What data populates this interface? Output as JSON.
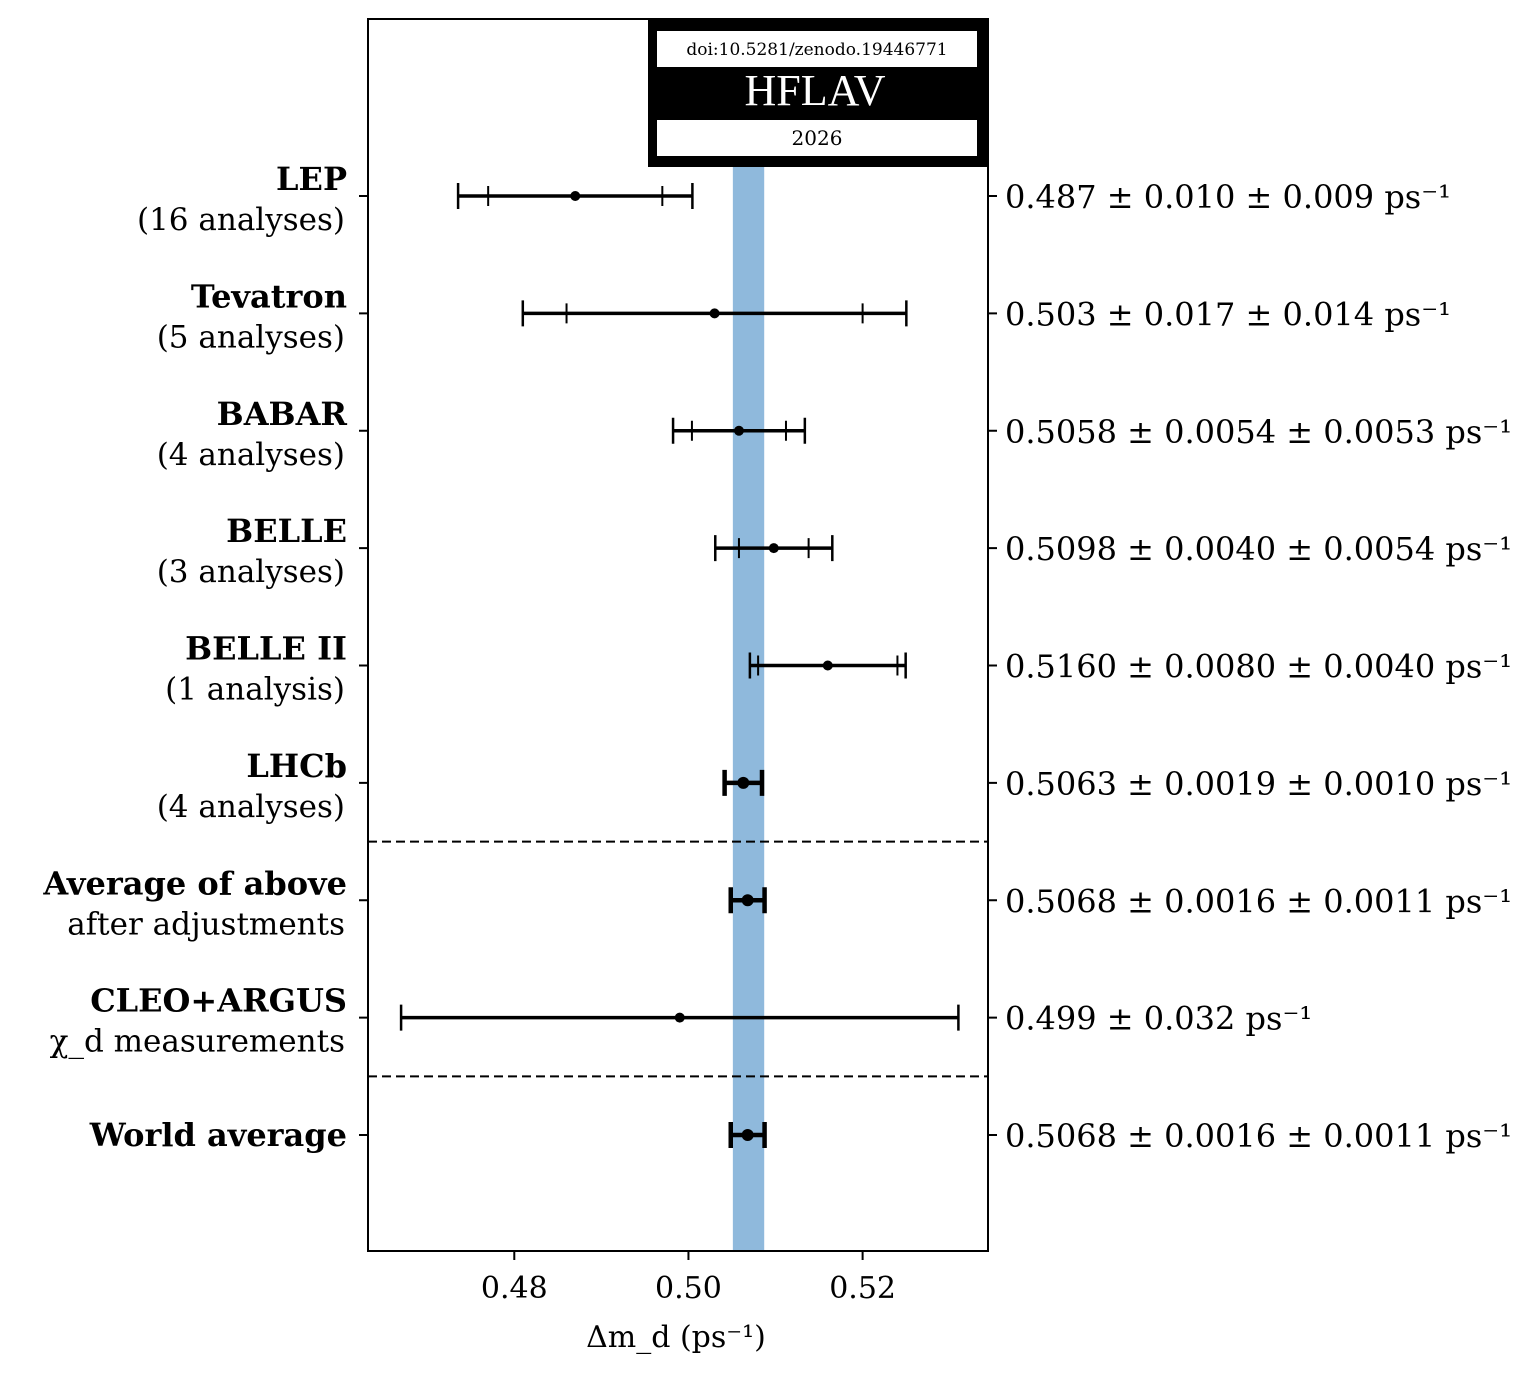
{
  "chart_data": {
    "type": "forest",
    "xlabel": "Δm_d (ps⁻¹)",
    "xlim": [
      0.4632,
      0.5344
    ],
    "x_ticks": [
      0.48,
      0.5,
      0.52
    ],
    "x_tick_labels": [
      "0.48",
      "0.50",
      "0.52"
    ],
    "band": {
      "low": 0.5051,
      "high": 0.5087,
      "color": "#8fb9dc"
    },
    "separators_after_rows": [
      5,
      7
    ],
    "rows": [
      {
        "name": "LEP",
        "sub": "(16 analyses)",
        "value": 0.487,
        "stat": 0.01,
        "syst": 0.009,
        "result": "0.487 ± 0.010 ± 0.009 ps⁻¹"
      },
      {
        "name": "Tevatron",
        "sub": "(5 analyses)",
        "value": 0.503,
        "stat": 0.017,
        "syst": 0.014,
        "result": "0.503 ± 0.017 ± 0.014 ps⁻¹"
      },
      {
        "name": "BABAR",
        "sub": "(4 analyses)",
        "value": 0.5058,
        "stat": 0.0054,
        "syst": 0.0053,
        "result": "0.5058 ± 0.0054 ± 0.0053 ps⁻¹"
      },
      {
        "name": "BELLE",
        "sub": "(3 analyses)",
        "value": 0.5098,
        "stat": 0.004,
        "syst": 0.0054,
        "result": "0.5098 ± 0.0040 ± 0.0054 ps⁻¹"
      },
      {
        "name": "BELLE II",
        "sub": "(1 analysis)",
        "value": 0.516,
        "stat": 0.008,
        "syst": 0.004,
        "result": "0.5160 ± 0.0080 ± 0.0040 ps⁻¹"
      },
      {
        "name": "LHCb",
        "sub": "(4 analyses)",
        "value": 0.5063,
        "stat": 0.0019,
        "syst": 0.001,
        "result": "0.5063 ± 0.0019 ± 0.0010 ps⁻¹"
      },
      {
        "name": "Average of above",
        "sub": "after adjustments",
        "value": 0.5068,
        "stat": 0.0016,
        "syst": 0.0011,
        "result": "0.5068 ± 0.0016 ± 0.0011 ps⁻¹"
      },
      {
        "name": "CLEO+ARGUS",
        "sub": "χ_d measurements",
        "value": 0.499,
        "stat": 0.032,
        "syst": 0,
        "result": "0.499 ± 0.032 ps⁻¹"
      },
      {
        "name": "World average",
        "sub": "",
        "value": 0.5068,
        "stat": 0.0016,
        "syst": 0.0011,
        "result": "0.5068 ± 0.0016 ± 0.0011 ps⁻¹"
      }
    ]
  },
  "badge": {
    "doi": "doi:10.5281/zenodo.19446771",
    "title": "HFLAV",
    "year": "2026"
  }
}
